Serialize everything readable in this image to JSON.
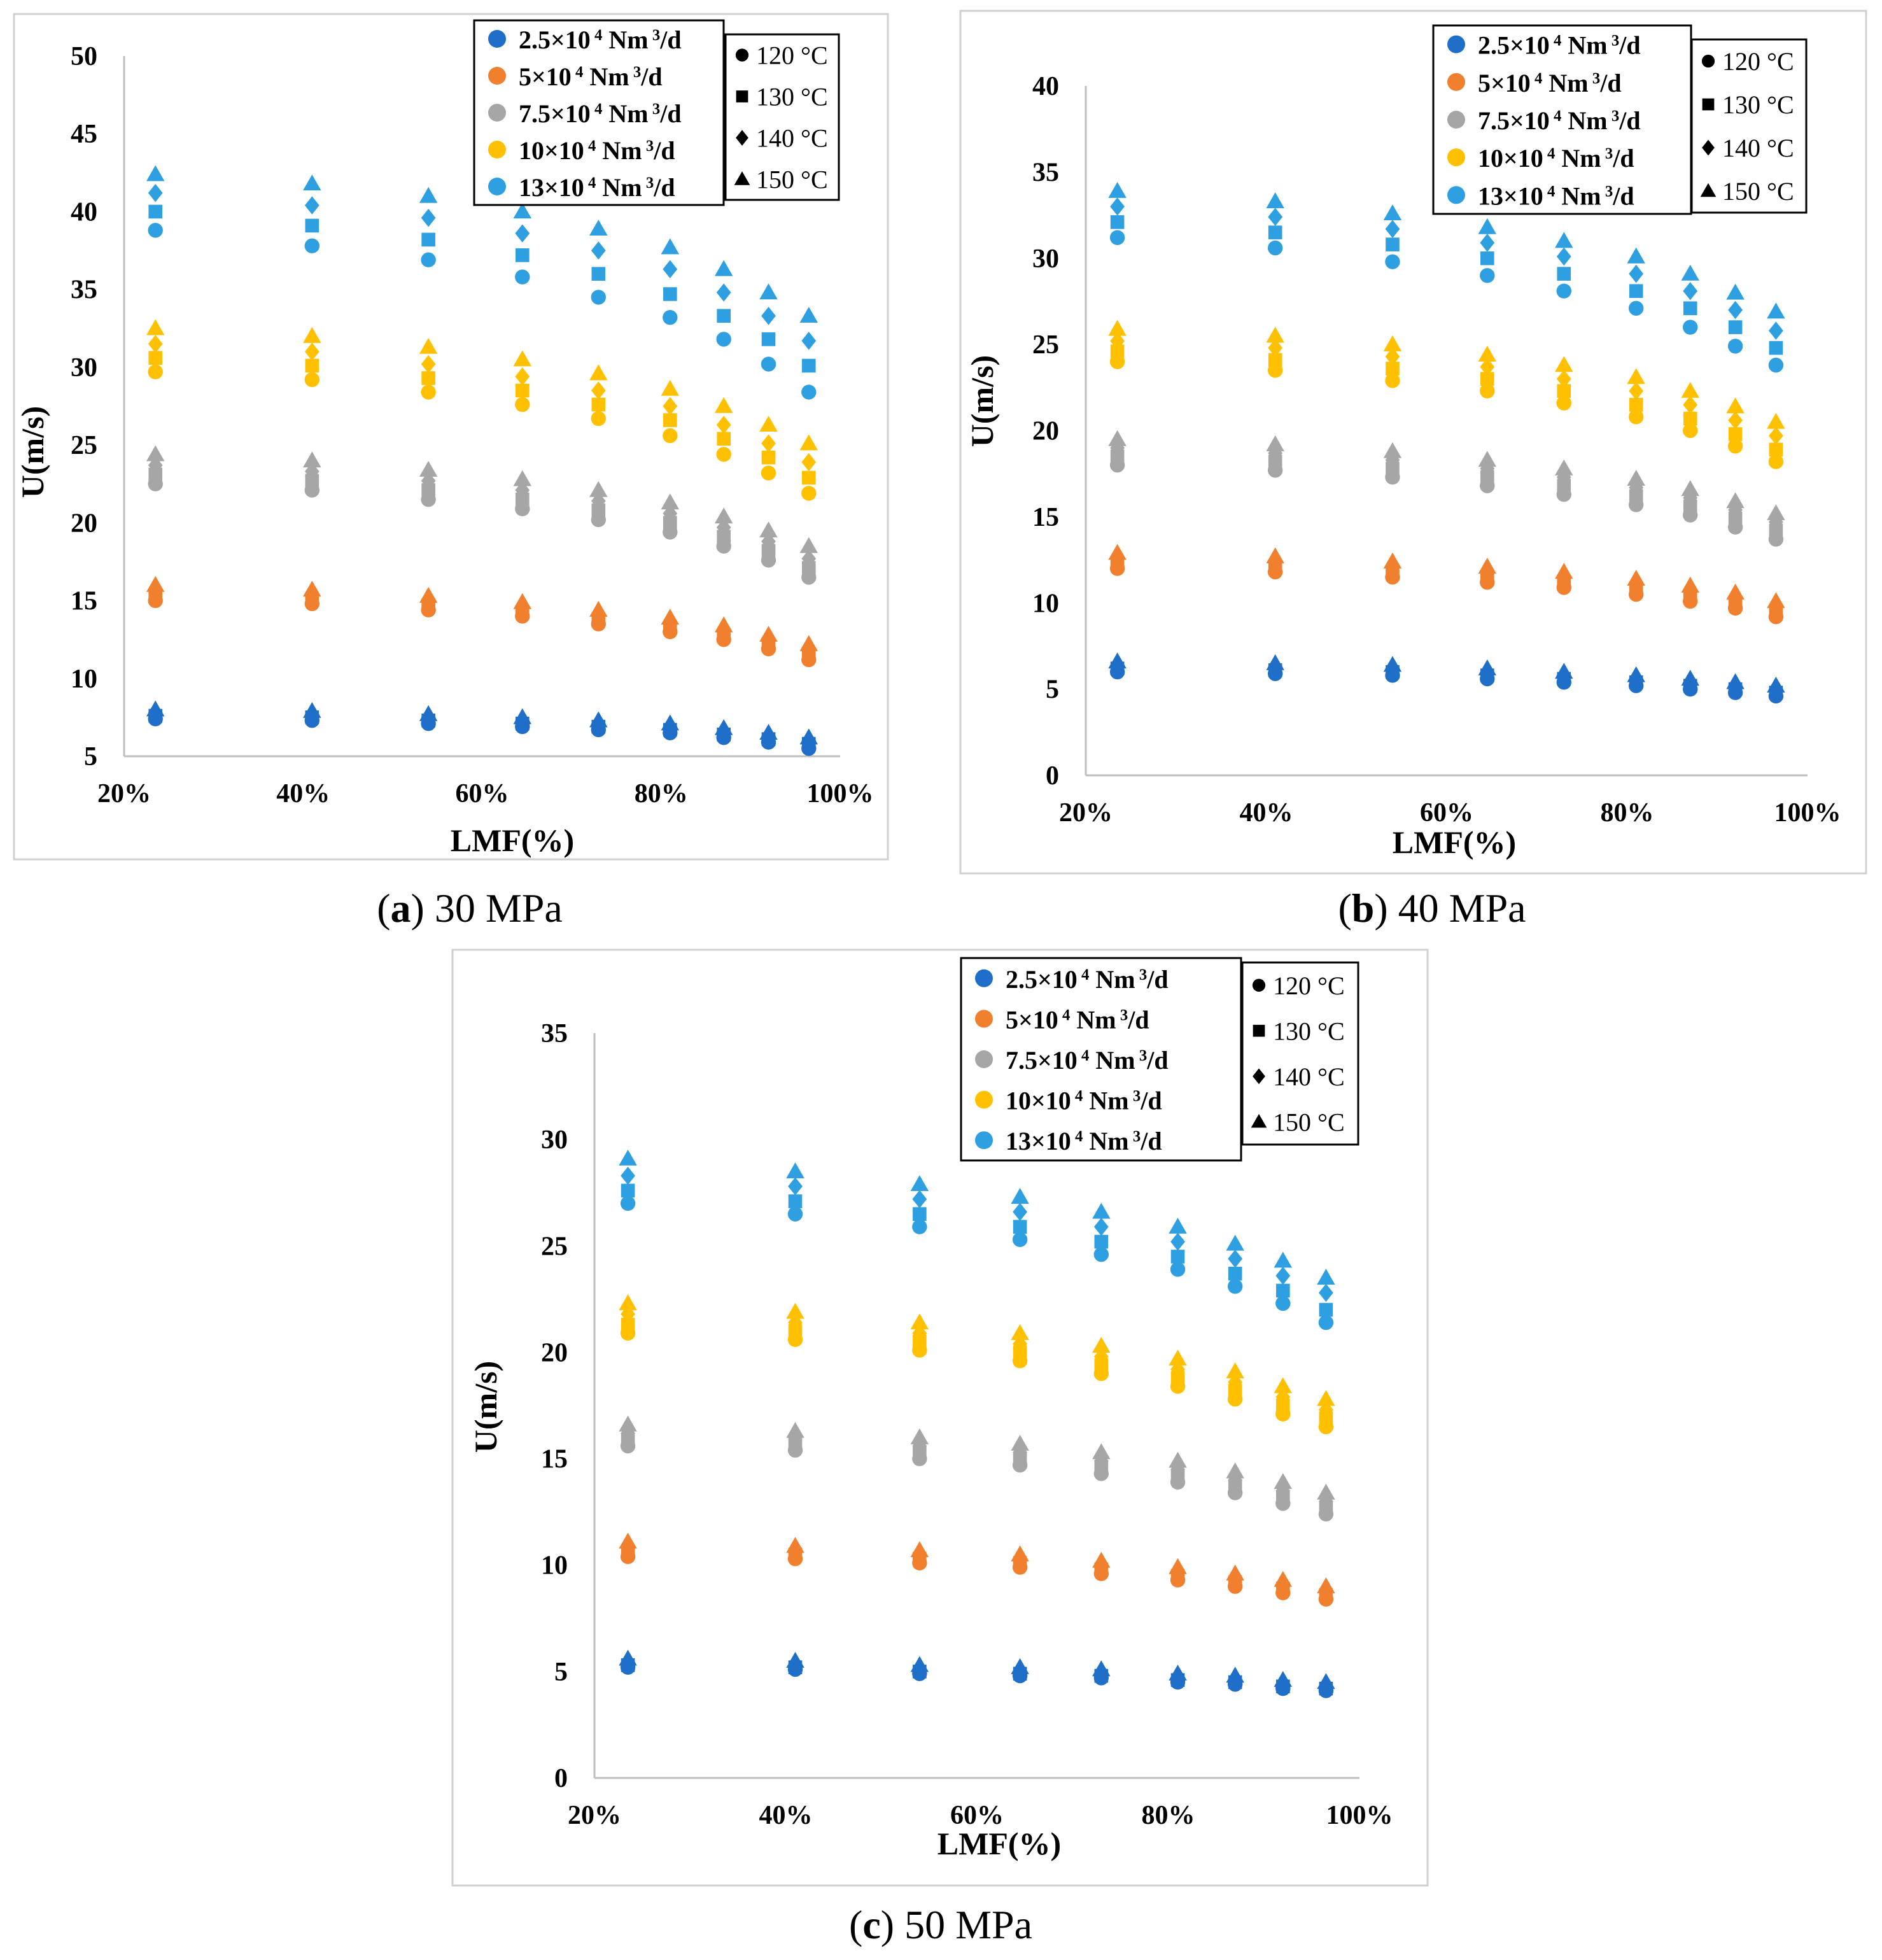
{
  "figure": {
    "captions": [
      {
        "letter": "a",
        "rest": " 30 MPa"
      },
      {
        "letter": "b",
        "rest": " 40 MPa"
      },
      {
        "letter": "c",
        "rest": " 50 MPa"
      }
    ]
  },
  "legend": {
    "flow_rates": [
      {
        "label": "2.5×10⁴ Nm³/d",
        "color": "#1F6FC8"
      },
      {
        "label": "5×10⁴ Nm³/d",
        "color": "#F07F2E"
      },
      {
        "label": "7.5×10⁴ Nm³/d",
        "color": "#A6A6A6"
      },
      {
        "label": "10×10⁴ Nm³/d",
        "color": "#FFC000"
      },
      {
        "label": "13×10⁴ Nm³/d",
        "color": "#2E9FE0"
      }
    ],
    "temperatures": [
      {
        "label": "120 °C",
        "marker": "circle"
      },
      {
        "label": "130 °C",
        "marker": "square"
      },
      {
        "label": "140 °C",
        "marker": "diamond"
      },
      {
        "label": "150 °C",
        "marker": "triangle"
      }
    ]
  },
  "chart_data": [
    {
      "type": "scatter",
      "panel": "a",
      "title": "30 MPa",
      "xlabel": "LMF(%)",
      "ylabel": "U(m/s)",
      "xlim": [
        20,
        100
      ],
      "ylim": [
        5,
        50
      ],
      "xticks": [
        "20%",
        "40%",
        "60%",
        "80%",
        "100%"
      ],
      "yticks": [
        "5",
        "10",
        "15",
        "20",
        "25",
        "30",
        "35",
        "40",
        "45",
        "50"
      ],
      "x": [
        23.5,
        41,
        54,
        64.5,
        73,
        81,
        87,
        92,
        96.5
      ],
      "series": [
        {
          "flow": "2.5×10⁴ Nm³/d",
          "temp": "120 °C",
          "values": [
            7.4,
            7.3,
            7.1,
            6.9,
            6.7,
            6.5,
            6.2,
            5.9,
            5.5
          ]
        },
        {
          "flow": "2.5×10⁴ Nm³/d",
          "temp": "130 °C",
          "values": [
            7.6,
            7.5,
            7.3,
            7.1,
            6.9,
            6.7,
            6.4,
            6.1,
            5.8
          ]
        },
        {
          "flow": "2.5×10⁴ Nm³/d",
          "temp": "140 °C",
          "values": [
            7.8,
            7.7,
            7.5,
            7.3,
            7.1,
            6.9,
            6.6,
            6.3,
            6.0
          ]
        },
        {
          "flow": "2.5×10⁴ Nm³/d",
          "temp": "150 °C",
          "values": [
            8.0,
            7.9,
            7.7,
            7.5,
            7.3,
            7.1,
            6.8,
            6.5,
            6.2
          ]
        },
        {
          "flow": "5×10⁴ Nm³/d",
          "temp": "120 °C",
          "values": [
            15.0,
            14.8,
            14.4,
            14.0,
            13.5,
            13.0,
            12.5,
            11.9,
            11.2
          ]
        },
        {
          "flow": "5×10⁴ Nm³/d",
          "temp": "130 °C",
          "values": [
            15.3,
            15.1,
            14.7,
            14.3,
            13.8,
            13.3,
            12.8,
            12.2,
            11.5
          ]
        },
        {
          "flow": "5×10⁴ Nm³/d",
          "temp": "140 °C",
          "values": [
            15.6,
            15.4,
            15.0,
            14.6,
            14.1,
            13.6,
            13.1,
            12.5,
            11.8
          ]
        },
        {
          "flow": "5×10⁴ Nm³/d",
          "temp": "150 °C",
          "values": [
            16.0,
            15.7,
            15.3,
            14.9,
            14.4,
            13.9,
            13.4,
            12.8,
            12.2
          ]
        },
        {
          "flow": "7.5×10⁴ Nm³/d",
          "temp": "120 °C",
          "values": [
            22.5,
            22.1,
            21.5,
            20.9,
            20.2,
            19.4,
            18.5,
            17.6,
            16.5
          ]
        },
        {
          "flow": "7.5×10⁴ Nm³/d",
          "temp": "130 °C",
          "values": [
            23.1,
            22.7,
            22.1,
            21.5,
            20.8,
            20.0,
            19.1,
            18.2,
            17.1
          ]
        },
        {
          "flow": "7.5×10⁴ Nm³/d",
          "temp": "140 °C",
          "values": [
            23.7,
            23.3,
            22.7,
            22.1,
            21.4,
            20.6,
            19.7,
            18.8,
            17.7
          ]
        },
        {
          "flow": "7.5×10⁴ Nm³/d",
          "temp": "150 °C",
          "values": [
            24.4,
            24.0,
            23.4,
            22.8,
            22.1,
            21.3,
            20.4,
            19.5,
            18.5
          ]
        },
        {
          "flow": "10×10⁴ Nm³/d",
          "temp": "120 °C",
          "values": [
            29.7,
            29.2,
            28.4,
            27.6,
            26.7,
            25.6,
            24.4,
            23.2,
            21.9
          ]
        },
        {
          "flow": "10×10⁴ Nm³/d",
          "temp": "130 °C",
          "values": [
            30.6,
            30.1,
            29.3,
            28.5,
            27.6,
            26.6,
            25.4,
            24.2,
            22.9
          ]
        },
        {
          "flow": "10×10⁴ Nm³/d",
          "temp": "140 °C",
          "values": [
            31.5,
            31.0,
            30.2,
            29.4,
            28.5,
            27.5,
            26.3,
            25.1,
            23.9
          ]
        },
        {
          "flow": "10×10⁴ Nm³/d",
          "temp": "150 °C",
          "values": [
            32.5,
            32.0,
            31.3,
            30.5,
            29.6,
            28.6,
            27.5,
            26.3,
            25.1
          ]
        },
        {
          "flow": "13×10⁴ Nm³/d",
          "temp": "120 °C",
          "values": [
            38.8,
            37.8,
            36.9,
            35.8,
            34.5,
            33.2,
            31.8,
            30.2,
            28.4
          ]
        },
        {
          "flow": "13×10⁴ Nm³/d",
          "temp": "130 °C",
          "values": [
            40.0,
            39.1,
            38.2,
            37.2,
            36.0,
            34.7,
            33.3,
            31.8,
            30.1
          ]
        },
        {
          "flow": "13×10⁴ Nm³/d",
          "temp": "140 °C",
          "values": [
            41.2,
            40.4,
            39.6,
            38.6,
            37.5,
            36.3,
            34.8,
            33.3,
            31.7
          ]
        },
        {
          "flow": "13×10⁴ Nm³/d",
          "temp": "150 °C",
          "values": [
            42.4,
            41.8,
            41.0,
            40.0,
            38.9,
            37.7,
            36.3,
            34.8,
            33.3
          ]
        }
      ]
    },
    {
      "type": "scatter",
      "panel": "b",
      "title": "40 MPa",
      "xlabel": "LMF(%)",
      "ylabel": "U(m/s)",
      "xlim": [
        20,
        100
      ],
      "ylim": [
        0,
        40
      ],
      "xticks": [
        "20%",
        "40%",
        "60%",
        "80%",
        "100%"
      ],
      "yticks": [
        "0",
        "5",
        "10",
        "15",
        "20",
        "25",
        "30",
        "35",
        "40"
      ],
      "x": [
        23.5,
        41,
        54,
        64.5,
        73,
        81,
        87,
        92,
        96.5
      ],
      "series": [
        {
          "flow": "2.5×10⁴ Nm³/d",
          "temp": "120 °C",
          "values": [
            6.0,
            5.9,
            5.8,
            5.6,
            5.4,
            5.2,
            5.0,
            4.8,
            4.6
          ]
        },
        {
          "flow": "2.5×10⁴ Nm³/d",
          "temp": "130 °C",
          "values": [
            6.2,
            6.1,
            6.0,
            5.8,
            5.6,
            5.4,
            5.2,
            5.0,
            4.8
          ]
        },
        {
          "flow": "2.5×10⁴ Nm³/d",
          "temp": "140 °C",
          "values": [
            6.4,
            6.3,
            6.2,
            6.0,
            5.8,
            5.6,
            5.4,
            5.2,
            5.0
          ]
        },
        {
          "flow": "2.5×10⁴ Nm³/d",
          "temp": "150 °C",
          "values": [
            6.6,
            6.5,
            6.4,
            6.2,
            6.0,
            5.8,
            5.6,
            5.4,
            5.2
          ]
        },
        {
          "flow": "5×10⁴ Nm³/d",
          "temp": "120 °C",
          "values": [
            12.0,
            11.8,
            11.5,
            11.2,
            10.9,
            10.5,
            10.1,
            9.7,
            9.2
          ]
        },
        {
          "flow": "5×10⁴ Nm³/d",
          "temp": "130 °C",
          "values": [
            12.3,
            12.1,
            11.8,
            11.5,
            11.2,
            10.8,
            10.4,
            10.0,
            9.5
          ]
        },
        {
          "flow": "5×10⁴ Nm³/d",
          "temp": "140 °C",
          "values": [
            12.6,
            12.4,
            12.1,
            11.8,
            11.5,
            11.1,
            10.7,
            10.3,
            9.8
          ]
        },
        {
          "flow": "5×10⁴ Nm³/d",
          "temp": "150 °C",
          "values": [
            12.9,
            12.7,
            12.4,
            12.1,
            11.8,
            11.4,
            11.0,
            10.6,
            10.1
          ]
        },
        {
          "flow": "7.5×10⁴ Nm³/d",
          "temp": "120 °C",
          "values": [
            18.0,
            17.7,
            17.3,
            16.8,
            16.3,
            15.7,
            15.1,
            14.4,
            13.7
          ]
        },
        {
          "flow": "7.5×10⁴ Nm³/d",
          "temp": "130 °C",
          "values": [
            18.5,
            18.2,
            17.8,
            17.3,
            16.8,
            16.2,
            15.6,
            14.9,
            14.2
          ]
        },
        {
          "flow": "7.5×10⁴ Nm³/d",
          "temp": "140 °C",
          "values": [
            19.0,
            18.7,
            18.3,
            17.8,
            17.3,
            16.7,
            16.1,
            15.4,
            14.7
          ]
        },
        {
          "flow": "7.5×10⁴ Nm³/d",
          "temp": "150 °C",
          "values": [
            19.5,
            19.2,
            18.8,
            18.3,
            17.8,
            17.2,
            16.6,
            15.9,
            15.2
          ]
        },
        {
          "flow": "10×10⁴ Nm³/d",
          "temp": "120 °C",
          "values": [
            24.0,
            23.5,
            22.9,
            22.3,
            21.6,
            20.8,
            20.0,
            19.1,
            18.2
          ]
        },
        {
          "flow": "10×10⁴ Nm³/d",
          "temp": "130 °C",
          "values": [
            24.6,
            24.1,
            23.6,
            23.0,
            22.3,
            21.5,
            20.7,
            19.8,
            18.9
          ]
        },
        {
          "flow": "10×10⁴ Nm³/d",
          "temp": "140 °C",
          "values": [
            25.2,
            24.8,
            24.3,
            23.7,
            23.0,
            22.3,
            21.5,
            20.6,
            19.7
          ]
        },
        {
          "flow": "10×10⁴ Nm³/d",
          "temp": "150 °C",
          "values": [
            25.9,
            25.5,
            25.0,
            24.4,
            23.8,
            23.1,
            22.3,
            21.4,
            20.5
          ]
        },
        {
          "flow": "13×10⁴ Nm³/d",
          "temp": "120 °C",
          "values": [
            31.2,
            30.6,
            29.8,
            29.0,
            28.1,
            27.1,
            26.0,
            24.9,
            23.8
          ]
        },
        {
          "flow": "13×10⁴ Nm³/d",
          "temp": "130 °C",
          "values": [
            32.1,
            31.5,
            30.8,
            30.0,
            29.1,
            28.1,
            27.1,
            26.0,
            24.8
          ]
        },
        {
          "flow": "13×10⁴ Nm³/d",
          "temp": "140 °C",
          "values": [
            33.0,
            32.4,
            31.7,
            30.9,
            30.1,
            29.1,
            28.1,
            27.0,
            25.8
          ]
        },
        {
          "flow": "13×10⁴ Nm³/d",
          "temp": "150 °C",
          "values": [
            33.9,
            33.3,
            32.6,
            31.8,
            31.0,
            30.1,
            29.1,
            28.0,
            26.9
          ]
        }
      ]
    },
    {
      "type": "scatter",
      "panel": "c",
      "title": "50 MPa",
      "xlabel": "LMF(%)",
      "ylabel": "U(m/s)",
      "xlim": [
        20,
        100
      ],
      "ylim": [
        0,
        35
      ],
      "xticks": [
        "20%",
        "40%",
        "60%",
        "80%",
        "100%"
      ],
      "yticks": [
        "0",
        "5",
        "10",
        "15",
        "20",
        "25",
        "30",
        "35"
      ],
      "x": [
        23.5,
        41,
        54,
        64.5,
        73,
        81,
        87,
        92,
        96.5
      ],
      "series": [
        {
          "flow": "2.5×10⁴ Nm³/d",
          "temp": "120 °C",
          "values": [
            5.2,
            5.1,
            4.9,
            4.8,
            4.7,
            4.5,
            4.4,
            4.2,
            4.1
          ]
        },
        {
          "flow": "2.5×10⁴ Nm³/d",
          "temp": "130 °C",
          "values": [
            5.3,
            5.2,
            5.0,
            4.9,
            4.8,
            4.6,
            4.5,
            4.3,
            4.2
          ]
        },
        {
          "flow": "2.5×10⁴ Nm³/d",
          "temp": "140 °C",
          "values": [
            5.4,
            5.3,
            5.1,
            5.0,
            4.9,
            4.7,
            4.6,
            4.4,
            4.3
          ]
        },
        {
          "flow": "2.5×10⁴ Nm³/d",
          "temp": "150 °C",
          "values": [
            5.6,
            5.5,
            5.3,
            5.2,
            5.1,
            4.9,
            4.8,
            4.6,
            4.5
          ]
        },
        {
          "flow": "5×10⁴ Nm³/d",
          "temp": "120 °C",
          "values": [
            10.4,
            10.3,
            10.1,
            9.9,
            9.6,
            9.3,
            9.0,
            8.7,
            8.4
          ]
        },
        {
          "flow": "5×10⁴ Nm³/d",
          "temp": "130 °C",
          "values": [
            10.6,
            10.5,
            10.3,
            10.1,
            9.8,
            9.5,
            9.2,
            8.9,
            8.6
          ]
        },
        {
          "flow": "5×10⁴ Nm³/d",
          "temp": "140 °C",
          "values": [
            10.8,
            10.7,
            10.5,
            10.3,
            10.0,
            9.7,
            9.4,
            9.1,
            8.8
          ]
        },
        {
          "flow": "5×10⁴ Nm³/d",
          "temp": "150 °C",
          "values": [
            11.1,
            10.9,
            10.7,
            10.5,
            10.2,
            9.9,
            9.6,
            9.3,
            9.0
          ]
        },
        {
          "flow": "7.5×10⁴ Nm³/d",
          "temp": "120 °C",
          "values": [
            15.6,
            15.4,
            15.0,
            14.7,
            14.3,
            13.9,
            13.4,
            12.9,
            12.4
          ]
        },
        {
          "flow": "7.5×10⁴ Nm³/d",
          "temp": "130 °C",
          "values": [
            15.9,
            15.7,
            15.3,
            15.0,
            14.6,
            14.2,
            13.7,
            13.2,
            12.7
          ]
        },
        {
          "flow": "7.5×10⁴ Nm³/d",
          "temp": "140 °C",
          "values": [
            16.2,
            16.0,
            15.6,
            15.3,
            14.9,
            14.5,
            14.0,
            13.5,
            13.0
          ]
        },
        {
          "flow": "7.5×10⁴ Nm³/d",
          "temp": "150 °C",
          "values": [
            16.6,
            16.3,
            16.0,
            15.7,
            15.3,
            14.9,
            14.4,
            13.9,
            13.4
          ]
        },
        {
          "flow": "10×10⁴ Nm³/d",
          "temp": "120 °C",
          "values": [
            20.9,
            20.6,
            20.1,
            19.6,
            19.0,
            18.4,
            17.8,
            17.1,
            16.5
          ]
        },
        {
          "flow": "10×10⁴ Nm³/d",
          "temp": "130 °C",
          "values": [
            21.3,
            21.0,
            20.5,
            20.0,
            19.4,
            18.8,
            18.2,
            17.5,
            16.9
          ]
        },
        {
          "flow": "10×10⁴ Nm³/d",
          "temp": "140 °C",
          "values": [
            21.8,
            21.4,
            20.9,
            20.4,
            19.8,
            19.2,
            18.6,
            17.9,
            17.3
          ]
        },
        {
          "flow": "10×10⁴ Nm³/d",
          "temp": "150 °C",
          "values": [
            22.3,
            21.9,
            21.4,
            20.9,
            20.3,
            19.7,
            19.1,
            18.4,
            17.8
          ]
        },
        {
          "flow": "13×10⁴ Nm³/d",
          "temp": "120 °C",
          "values": [
            27.0,
            26.5,
            25.9,
            25.3,
            24.6,
            23.9,
            23.1,
            22.3,
            21.4
          ]
        },
        {
          "flow": "13×10⁴ Nm³/d",
          "temp": "130 °C",
          "values": [
            27.6,
            27.1,
            26.5,
            25.9,
            25.2,
            24.5,
            23.7,
            22.9,
            22.0
          ]
        },
        {
          "flow": "13×10⁴ Nm³/d",
          "temp": "140 °C",
          "values": [
            28.3,
            27.8,
            27.2,
            26.6,
            25.9,
            25.2,
            24.4,
            23.6,
            22.8
          ]
        },
        {
          "flow": "13×10⁴ Nm³/d",
          "temp": "150 °C",
          "values": [
            29.1,
            28.5,
            27.9,
            27.3,
            26.6,
            25.9,
            25.1,
            24.3,
            23.5
          ]
        }
      ]
    }
  ]
}
